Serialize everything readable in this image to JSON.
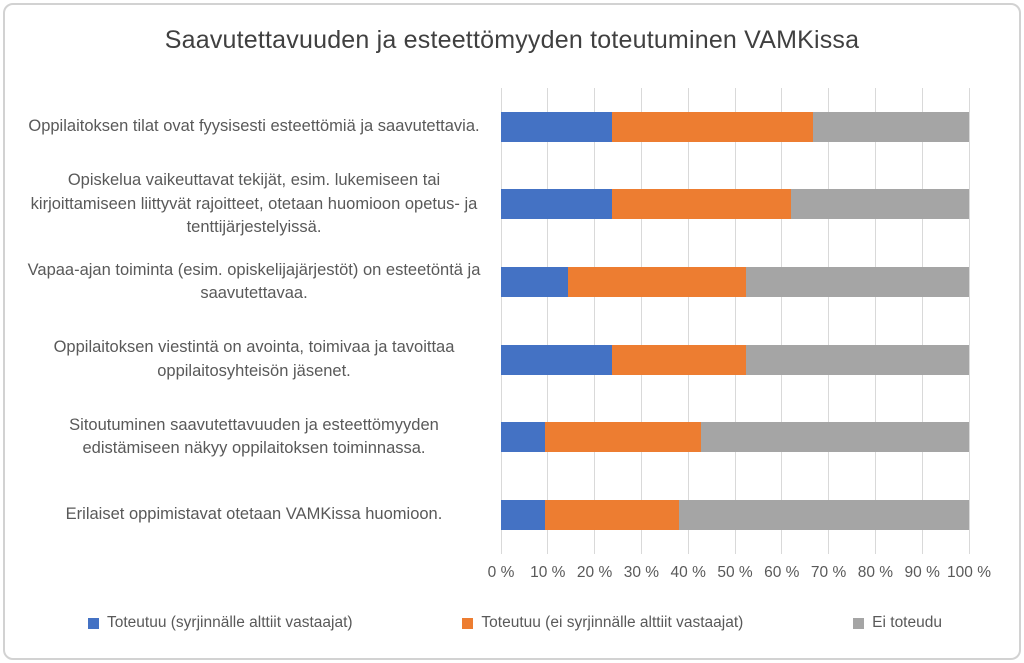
{
  "title": "Saavutettavuuden ja esteettömyyden toteutuminen VAMKissa",
  "chart_data": {
    "type": "bar",
    "stacked": true,
    "orientation": "horizontal",
    "title": "Saavutettavuuden ja esteettömyyden toteutuminen VAMKissa",
    "categories": [
      "Oppilaitoksen tilat ovat fyysisesti esteettömiä ja saavutettavia.",
      "Opiskelua vaikeuttavat tekijät, esim. lukemiseen tai kirjoittamiseen liittyvät rajoitteet, otetaan huomioon opetus- ja tenttijärjestelyissä.",
      "Vapaa-ajan toiminta (esim. opiskelijajärjestöt) on esteetöntä ja saavutettavaa.",
      "Oppilaitoksen viestintä on avointa, toimivaa ja tavoittaa oppilaitosyhteisön jäsenet.",
      "Sitoutuminen saavutettavuuden ja esteettömyyden edistämiseen näkyy oppilaitoksen toiminnassa.",
      "Erilaiset oppimistavat otetaan VAMKissa huomioon."
    ],
    "series": [
      {
        "name": "Toteutuu (syrjinnälle alttiit vastaajat)",
        "color": "#4472C4",
        "values": [
          23.8,
          23.8,
          14.3,
          23.8,
          9.5,
          9.5
        ]
      },
      {
        "name": "Toteutuu (ei syrjinnälle alttiit vastaajat)",
        "color": "#ED7D31",
        "values": [
          42.9,
          38.1,
          38.1,
          28.6,
          33.3,
          28.6
        ]
      },
      {
        "name": "Ei toteudu",
        "color": "#A5A5A5",
        "values": [
          33.3,
          38.1,
          47.6,
          47.6,
          57.1,
          61.9
        ]
      }
    ],
    "x_ticks": [
      "0 %",
      "10 %",
      "20 %",
      "30 %",
      "40 %",
      "50 %",
      "60 %",
      "70 %",
      "80 %",
      "90 %",
      "100 %"
    ],
    "xlim": [
      0,
      100
    ],
    "xlabel": "",
    "ylabel": "",
    "grid": true,
    "gridline_color": "#d9d9d9",
    "legend_position": "bottom"
  }
}
